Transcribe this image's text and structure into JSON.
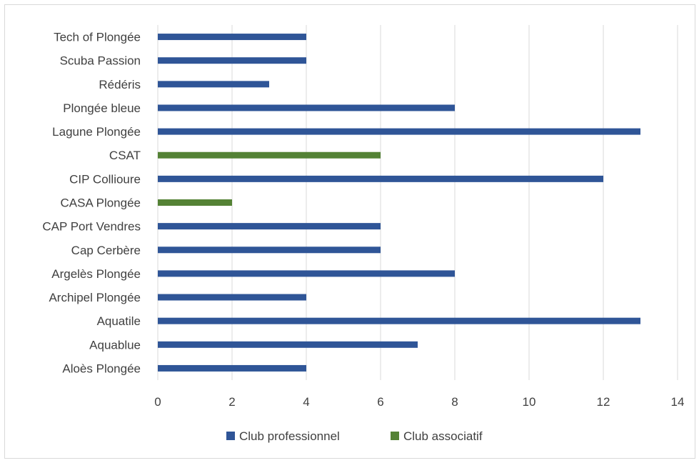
{
  "chart_data": {
    "type": "bar",
    "orientation": "horizontal",
    "categories": [
      "Aloès Plongée",
      "Aquablue",
      "Aquatile",
      "Archipel Plongée",
      "Argelès Plongée",
      "Cap Cerbère",
      "CAP Port Vendres",
      "CASA  Plongée",
      "CIP Collioure",
      "CSAT",
      "Lagune Plongée",
      "Plongée bleue",
      "Rédéris",
      "Scuba Passion",
      "Tech of Plongée"
    ],
    "series": [
      {
        "name": "Club professionnel",
        "color": "#2f5597",
        "values": [
          4,
          7,
          13,
          4,
          8,
          6,
          6,
          null,
          12,
          null,
          13,
          8,
          3,
          4,
          4
        ]
      },
      {
        "name": "Club associatif",
        "color": "#548235",
        "values": [
          null,
          null,
          null,
          null,
          null,
          null,
          null,
          2,
          null,
          6,
          null,
          null,
          null,
          null,
          null
        ]
      }
    ],
    "xlim": [
      0,
      14
    ],
    "xticks": [
      "0",
      "2",
      "4",
      "6",
      "8",
      "10",
      "12",
      "14"
    ],
    "grid": "vertical",
    "legend": "bottom",
    "title": "",
    "xlabel": "",
    "ylabel": ""
  }
}
